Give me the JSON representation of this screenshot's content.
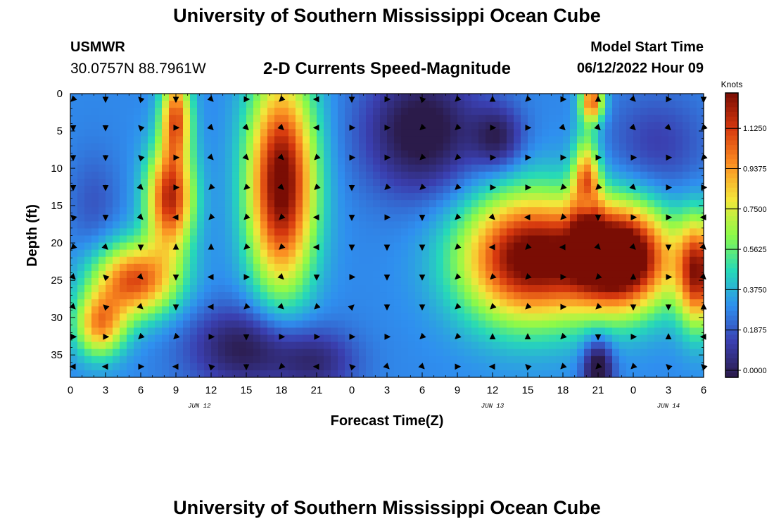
{
  "page": {
    "title": "University of Southern Mississippi Ocean Cube",
    "footer_title": "University of Southern Mississippi Ocean Cube",
    "station": "USMWR",
    "coords": "30.0757N  88.7961W",
    "subtitle": "2-D Currents Speed-Magnitude",
    "model_label": "Model Start Time",
    "model_time": "06/12/2022 Hour 09"
  },
  "colors": {
    "arrow": "#000000",
    "scale": [
      "#2b1b4a",
      "#3a3fb0",
      "#2f8fef",
      "#26d9b8",
      "#8dfa48",
      "#f4e63a",
      "#fb8f22",
      "#d6380e",
      "#7a0d04"
    ]
  },
  "chart_data": {
    "type": "heatmap",
    "title": "2-D Currents Speed-Magnitude",
    "xlabel": "Forecast Time(Z)",
    "ylabel": "Depth (ft)",
    "x_range_hours": [
      0,
      54
    ],
    "y_range_ft": [
      0,
      38
    ],
    "x_ticks": [
      "0",
      "3",
      "6",
      "9",
      "12",
      "15",
      "18",
      "21",
      "0",
      "3",
      "6",
      "9",
      "12",
      "15",
      "18",
      "21",
      "0",
      "3",
      "6"
    ],
    "y_ticks": [
      "0",
      "5",
      "10",
      "15",
      "20",
      "25",
      "30",
      "35"
    ],
    "date_labels": [
      {
        "text": "JUN 12",
        "hour": 11
      },
      {
        "text": "JUN 13",
        "hour": 36
      },
      {
        "text": "JUN 14",
        "hour": 51
      }
    ],
    "colorbar": {
      "label": "Knots",
      "range": [
        0,
        1.25
      ],
      "ticks": [
        "1.1250",
        "0.9375",
        "0.7500",
        "0.5625",
        "0.3750",
        "0.1875",
        "0.0000"
      ]
    },
    "speed_blobs_knots": [
      {
        "hour": 8.5,
        "depth": 14,
        "sh": 1.4,
        "sd": 5,
        "v": 0.85
      },
      {
        "hour": 5.5,
        "depth": 25,
        "sh": 2.5,
        "sd": 3.5,
        "v": 0.75
      },
      {
        "hour": 2.5,
        "depth": 31,
        "sh": 1.5,
        "sd": 3,
        "v": 0.6
      },
      {
        "hour": 9,
        "depth": 3,
        "sh": 0.9,
        "sd": 4,
        "v": 0.7
      },
      {
        "hour": 18,
        "depth": 12,
        "sh": 2,
        "sd": 10,
        "v": 1.0
      },
      {
        "hour": 44,
        "depth": 13,
        "sh": 0.8,
        "sd": 5,
        "v": 0.7
      },
      {
        "hour": 39,
        "depth": 22,
        "sh": 4,
        "sd": 6,
        "v": 1.0
      },
      {
        "hour": 47,
        "depth": 22,
        "sh": 3,
        "sd": 5,
        "v": 1.15
      },
      {
        "hour": 53.5,
        "depth": 24,
        "sh": 1.2,
        "sd": 5,
        "v": 0.85
      },
      {
        "hour": 44.5,
        "depth": 1,
        "sh": 0.7,
        "sd": 2,
        "v": 0.7
      },
      {
        "hour": 45,
        "depth": 37,
        "sh": 0.9,
        "sd": 3,
        "v": -0.4
      },
      {
        "hour": 30,
        "depth": 5,
        "sh": 3.5,
        "sd": 6,
        "v": -0.35
      },
      {
        "hour": 36.5,
        "depth": 6,
        "sh": 1.5,
        "sd": 3,
        "v": -0.25
      },
      {
        "hour": 44,
        "depth": 15,
        "sh": 0.6,
        "sd": 1.8,
        "v": -0.45
      },
      {
        "hour": 15,
        "depth": 34,
        "sh": 3.5,
        "sd": 4,
        "v": -0.3
      },
      {
        "hour": 50,
        "depth": 7,
        "sh": 3,
        "sd": 5,
        "v": -0.15
      },
      {
        "hour": 21,
        "depth": 36,
        "sh": 2.5,
        "sd": 3,
        "v": -0.2
      },
      {
        "hour": 2,
        "depth": 15,
        "sh": 1.5,
        "sd": 5,
        "v": -0.1
      }
    ],
    "base_speed_knots": 0.3,
    "vector_columns_hours": [
      0,
      3,
      6,
      9,
      12,
      15,
      18,
      21,
      24,
      27,
      30,
      33,
      36,
      39,
      42,
      45,
      48,
      51,
      54
    ],
    "vector_rows_ft": [
      0,
      4,
      8,
      12,
      16,
      20,
      24,
      28,
      32,
      36
    ],
    "vector_dir_pattern_deg": [
      [
        135,
        90,
        225,
        90,
        45,
        0,
        135,
        180,
        90,
        0,
        225,
        135,
        270,
        135,
        0,
        270,
        45,
        0,
        90
      ],
      [
        90,
        90,
        225,
        0,
        45,
        45,
        45,
        180,
        0,
        0,
        135,
        135,
        0,
        0,
        45,
        45,
        45,
        45,
        135
      ],
      [
        90,
        90,
        225,
        0,
        45,
        45,
        45,
        135,
        0,
        0,
        135,
        135,
        0,
        0,
        0,
        0,
        0,
        0,
        135
      ],
      [
        90,
        90,
        45,
        0,
        135,
        135,
        45,
        135,
        90,
        135,
        135,
        135,
        0,
        0,
        135,
        135,
        45,
        0,
        0
      ],
      [
        225,
        90,
        45,
        180,
        135,
        135,
        135,
        180,
        90,
        0,
        90,
        135,
        45,
        180,
        135,
        90,
        0,
        0,
        180
      ],
      [
        135,
        45,
        90,
        270,
        270,
        135,
        135,
        180,
        90,
        90,
        90,
        135,
        180,
        135,
        180,
        45,
        45,
        90,
        45
      ],
      [
        45,
        225,
        45,
        90,
        180,
        0,
        45,
        90,
        0,
        90,
        90,
        135,
        135,
        135,
        0,
        135,
        270,
        0,
        45
      ],
      [
        45,
        225,
        45,
        90,
        180,
        135,
        45,
        135,
        315,
        90,
        90,
        135,
        135,
        135,
        0,
        135,
        90,
        90,
        270
      ],
      [
        0,
        0,
        135,
        135,
        0,
        90,
        0,
        0,
        0,
        0,
        135,
        135,
        270,
        270,
        135,
        90,
        0,
        270,
        180
      ],
      [
        180,
        180,
        0,
        180,
        225,
        90,
        135,
        180,
        225,
        45,
        45,
        0,
        180,
        225,
        135,
        135,
        135,
        225,
        225
      ]
    ]
  }
}
